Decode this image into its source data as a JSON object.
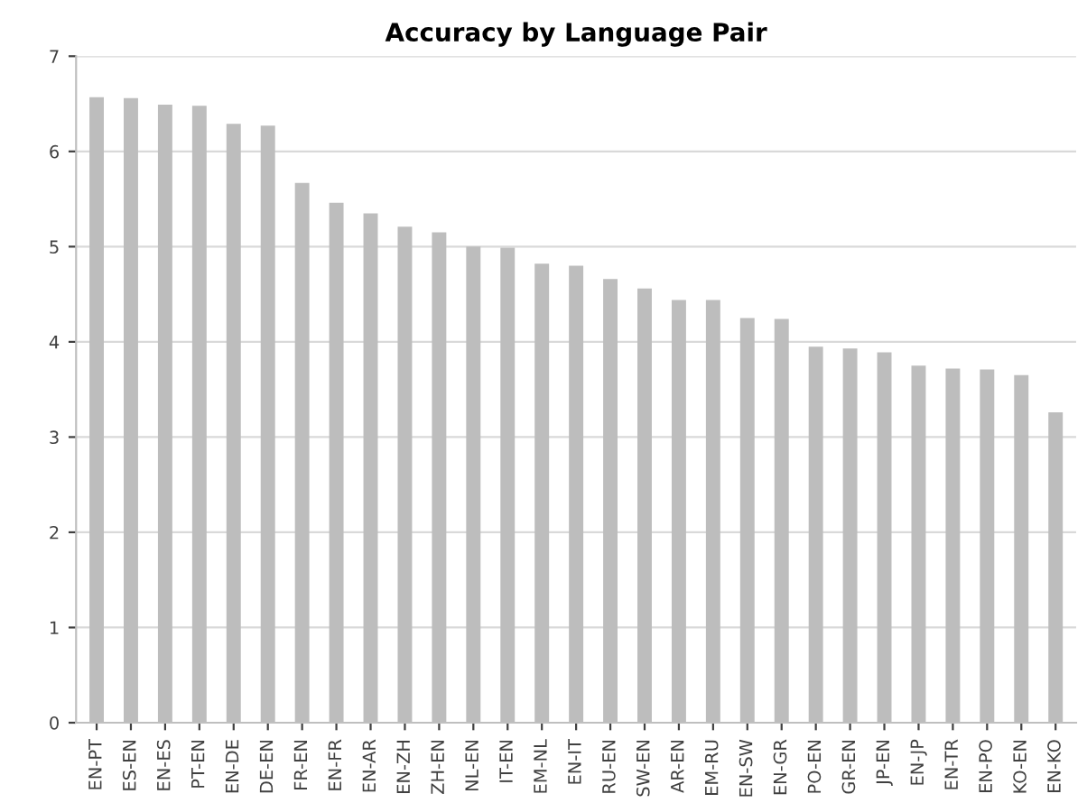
{
  "chart_data": {
    "type": "bar",
    "title": "Accuracy by Language Pair",
    "categories": [
      "EN-PT",
      "ES-EN",
      "EN-ES",
      "PT-EN",
      "EN-DE",
      "DE-EN",
      "FR-EN",
      "EN-FR",
      "EN-AR",
      "EN-ZH",
      "ZH-EN",
      "NL-EN",
      "IT-EN",
      "EM-NL",
      "EN-IT",
      "RU-EN",
      "SW-EN",
      "AR-EN",
      "EM-RU",
      "EN-SW",
      "EN-GR",
      "PO-EN",
      "GR-EN",
      "JP-EN",
      "EN-JP",
      "EN-TR",
      "EN-PO",
      "KO-EN",
      "EN-KO"
    ],
    "values": [
      6.57,
      6.56,
      6.49,
      6.48,
      6.29,
      6.27,
      5.67,
      5.46,
      5.35,
      5.21,
      5.15,
      5.0,
      4.99,
      4.82,
      4.8,
      4.66,
      4.56,
      4.44,
      4.44,
      4.25,
      4.24,
      3.95,
      3.93,
      3.89,
      3.75,
      3.72,
      3.71,
      3.65,
      3.26
    ],
    "color": "#bdbdbd",
    "ylim": [
      0,
      7
    ],
    "yticks": [
      0,
      1,
      2,
      3,
      4,
      5,
      6,
      7
    ],
    "grid": "y"
  }
}
